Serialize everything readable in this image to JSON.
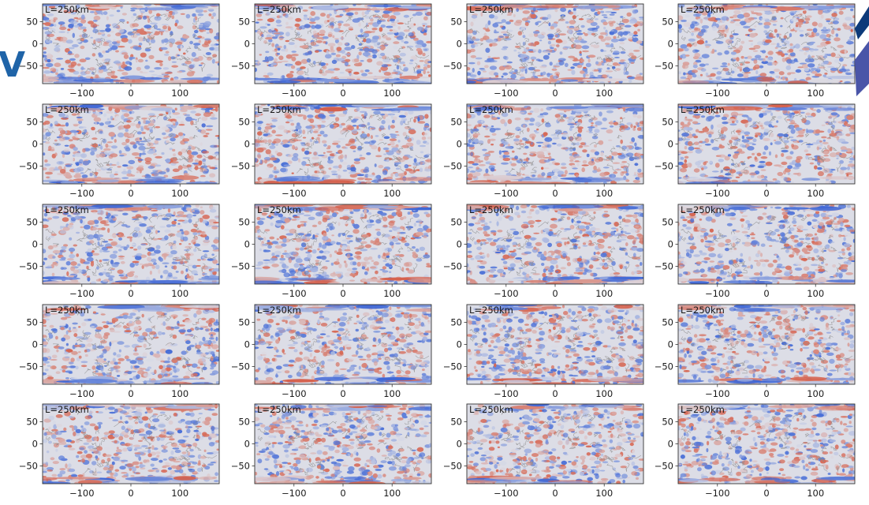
{
  "colors": {
    "positive": "#d65f4a",
    "negative": "#3f67d6",
    "neutral": "#dcdde6",
    "coastline": "#8a8a8a",
    "frame": "#333333",
    "logo_blue": "#1f64a8",
    "logo_navy": "#0d3a7a",
    "logo_indigo": "#4a55a8"
  },
  "chart_data": {
    "type": "heatmap",
    "layout": {
      "rows": 5,
      "cols": 4
    },
    "colormap": "coolwarm",
    "xlim": [
      -180,
      180
    ],
    "ylim": [
      -90,
      90
    ],
    "x_ticks": [
      -100,
      0,
      100
    ],
    "y_ticks": [
      50,
      0,
      -50
    ],
    "x_tick_labels": [
      "−100",
      "0",
      "100"
    ],
    "y_tick_labels": [
      "50",
      "0",
      "−50"
    ],
    "grid": false,
    "legend": "none",
    "panels": [
      {
        "label": "L=250km"
      },
      {
        "label": "L=250km"
      },
      {
        "label": "L=250km"
      },
      {
        "label": "L=250km"
      },
      {
        "label": "L=250km"
      },
      {
        "label": "L=250km"
      },
      {
        "label": "L=250km"
      },
      {
        "label": "L=250km"
      },
      {
        "label": "L=250km"
      },
      {
        "label": "L=250km"
      },
      {
        "label": "L=250km"
      },
      {
        "label": "L=250km"
      },
      {
        "label": "L=250km"
      },
      {
        "label": "L=250km"
      },
      {
        "label": "L=250km"
      },
      {
        "label": "L=250km"
      },
      {
        "label": "L=250km"
      },
      {
        "label": "L=250km"
      },
      {
        "label": "L=250km"
      },
      {
        "label": "L=250km"
      }
    ]
  },
  "logo": {
    "letter": "V"
  }
}
